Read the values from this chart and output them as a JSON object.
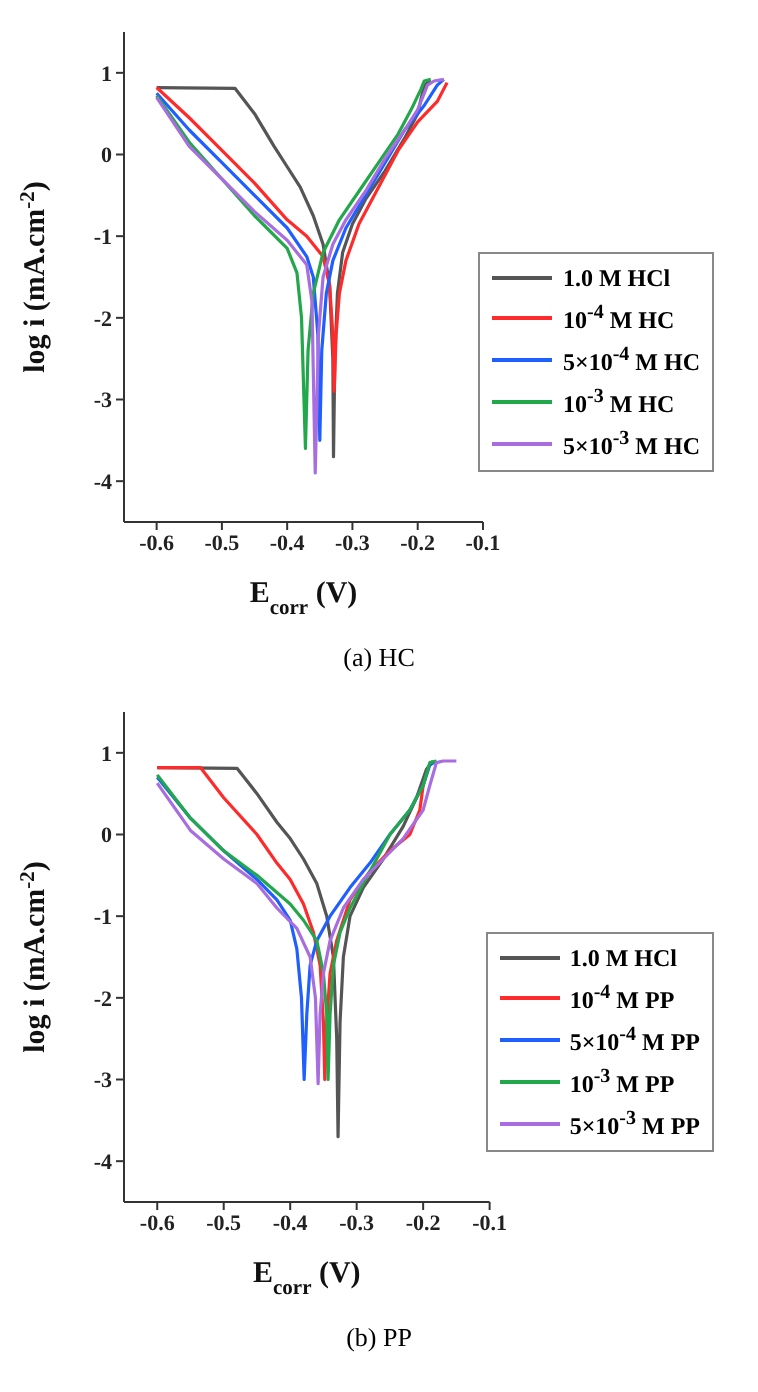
{
  "chart_data": [
    {
      "type": "line",
      "xlabel": "E$_{corr}$ (V)",
      "ylabel": "log i (mA.cm$^{-2}$)",
      "annotations": [
        "(a) HC"
      ],
      "xlim": [
        -0.65,
        -0.1
      ],
      "xticks": [
        -0.6,
        -0.5,
        -0.4,
        -0.3,
        -0.2,
        -0.1
      ],
      "ylim": [
        -4.5,
        1.5
      ],
      "yticks": [
        -4,
        -3,
        -2,
        -1,
        0,
        1
      ],
      "grid": false,
      "legend": "right",
      "line_style": "solid",
      "series": [
        {
          "name": "1.0 M HCl",
          "color": "#555555",
          "x": [
            -0.6,
            -0.48,
            -0.45,
            -0.42,
            -0.4,
            -0.38,
            -0.36,
            -0.345,
            -0.335,
            -0.33,
            -0.329,
            -0.327,
            -0.323,
            -0.315,
            -0.3,
            -0.28,
            -0.25,
            -0.22,
            -0.2,
            -0.19,
            -0.18
          ],
          "values": [
            0.82,
            0.81,
            0.5,
            0.1,
            -0.15,
            -0.4,
            -0.75,
            -1.1,
            -1.6,
            -2.5,
            -3.7,
            -2.5,
            -1.7,
            -1.2,
            -0.85,
            -0.55,
            -0.2,
            0.2,
            0.5,
            0.85,
            0.9
          ]
        },
        {
          "name": "10$^{-4}$ M HC",
          "color": "#ff2a2a",
          "x": [
            -0.6,
            -0.55,
            -0.5,
            -0.45,
            -0.4,
            -0.37,
            -0.345,
            -0.335,
            -0.33,
            -0.328,
            -0.325,
            -0.32,
            -0.31,
            -0.29,
            -0.26,
            -0.23,
            -0.2,
            -0.17,
            -0.155
          ],
          "values": [
            0.82,
            0.45,
            0.05,
            -0.35,
            -0.8,
            -1.0,
            -1.25,
            -1.6,
            -2.2,
            -2.9,
            -2.2,
            -1.7,
            -1.3,
            -0.85,
            -0.4,
            0.05,
            0.4,
            0.65,
            0.88
          ]
        },
        {
          "name": "5×10$^{-4}$ M HC",
          "color": "#1f5fff",
          "x": [
            -0.6,
            -0.55,
            -0.5,
            -0.45,
            -0.4,
            -0.37,
            -0.36,
            -0.353,
            -0.35,
            -0.347,
            -0.34,
            -0.33,
            -0.31,
            -0.28,
            -0.25,
            -0.22,
            -0.19,
            -0.17,
            -0.16
          ],
          "values": [
            0.75,
            0.3,
            -0.1,
            -0.5,
            -0.9,
            -1.25,
            -1.5,
            -2.2,
            -3.5,
            -2.4,
            -1.7,
            -1.3,
            -0.9,
            -0.5,
            -0.1,
            0.3,
            0.6,
            0.85,
            0.92
          ]
        },
        {
          "name": "10$^{-3}$ M HC",
          "color": "#22a84a",
          "x": [
            -0.6,
            -0.55,
            -0.5,
            -0.45,
            -0.4,
            -0.385,
            -0.378,
            -0.372,
            -0.368,
            -0.36,
            -0.345,
            -0.32,
            -0.29,
            -0.26,
            -0.23,
            -0.21,
            -0.195,
            -0.19,
            -0.18
          ],
          "values": [
            0.72,
            0.15,
            -0.3,
            -0.75,
            -1.15,
            -1.45,
            -2.0,
            -3.6,
            -2.4,
            -1.7,
            -1.2,
            -0.8,
            -0.45,
            -0.1,
            0.25,
            0.55,
            0.8,
            0.9,
            0.92
          ]
        },
        {
          "name": "5×10$^{-3}$ M HC",
          "color": "#a86ee0",
          "x": [
            -0.6,
            -0.55,
            -0.5,
            -0.45,
            -0.4,
            -0.37,
            -0.362,
            -0.357,
            -0.352,
            -0.345,
            -0.33,
            -0.31,
            -0.28,
            -0.25,
            -0.22,
            -0.2,
            -0.185,
            -0.175,
            -0.16
          ],
          "values": [
            0.7,
            0.1,
            -0.3,
            -0.7,
            -1.05,
            -1.35,
            -1.8,
            -3.9,
            -2.2,
            -1.5,
            -1.1,
            -0.8,
            -0.45,
            -0.05,
            0.3,
            0.55,
            0.85,
            0.9,
            0.92
          ]
        }
      ]
    },
    {
      "type": "line",
      "xlabel": "E$_{corr}$ (V)",
      "ylabel": "log i (mA.cm$^{-2}$)",
      "annotations": [
        "(b) PP"
      ],
      "xlim": [
        -0.65,
        -0.1
      ],
      "xticks": [
        -0.6,
        -0.5,
        -0.4,
        -0.3,
        -0.2,
        -0.1
      ],
      "ylim": [
        -4.5,
        1.5
      ],
      "yticks": [
        -4,
        -3,
        -2,
        -1,
        0,
        1
      ],
      "grid": false,
      "legend": "right",
      "line_style": "solid",
      "series": [
        {
          "name": "1.0 M HCl",
          "color": "#555555",
          "x": [
            -0.6,
            -0.48,
            -0.45,
            -0.42,
            -0.4,
            -0.38,
            -0.36,
            -0.345,
            -0.335,
            -0.33,
            -0.328,
            -0.325,
            -0.32,
            -0.31,
            -0.29,
            -0.26,
            -0.23,
            -0.21,
            -0.195,
            -0.185
          ],
          "values": [
            0.82,
            0.81,
            0.5,
            0.15,
            -0.05,
            -0.3,
            -0.6,
            -1.0,
            -1.5,
            -2.5,
            -3.7,
            -2.3,
            -1.5,
            -1.0,
            -0.65,
            -0.3,
            0.1,
            0.45,
            0.8,
            0.9
          ]
        },
        {
          "name": "10$^{-4}$ M PP",
          "color": "#ff2a2a",
          "x": [
            -0.6,
            -0.535,
            -0.5,
            -0.45,
            -0.42,
            -0.4,
            -0.38,
            -0.365,
            -0.355,
            -0.35,
            -0.348,
            -0.345,
            -0.34,
            -0.33,
            -0.31,
            -0.28,
            -0.25,
            -0.22,
            -0.205,
            -0.2
          ],
          "values": [
            0.82,
            0.82,
            0.45,
            0.0,
            -0.35,
            -0.55,
            -0.85,
            -1.2,
            -1.6,
            -2.3,
            -3.0,
            -2.3,
            -1.7,
            -1.3,
            -0.8,
            -0.45,
            -0.2,
            0.0,
            0.3,
            0.6
          ]
        },
        {
          "name": "5×10$^{-4}$ M PP",
          "color": "#1f5fff",
          "x": [
            -0.6,
            -0.55,
            -0.5,
            -0.45,
            -0.42,
            -0.4,
            -0.39,
            -0.383,
            -0.379,
            -0.375,
            -0.37,
            -0.36,
            -0.34,
            -0.31,
            -0.28,
            -0.25,
            -0.22,
            -0.2,
            -0.19,
            -0.18
          ],
          "values": [
            0.7,
            0.2,
            -0.2,
            -0.55,
            -0.8,
            -1.05,
            -1.4,
            -2.0,
            -3.0,
            -2.2,
            -1.6,
            -1.3,
            -1.0,
            -0.65,
            -0.35,
            0.0,
            0.3,
            0.6,
            0.85,
            0.9
          ]
        },
        {
          "name": "10$^{-3}$ M PP",
          "color": "#22a84a",
          "x": [
            -0.6,
            -0.55,
            -0.5,
            -0.45,
            -0.4,
            -0.38,
            -0.36,
            -0.35,
            -0.345,
            -0.343,
            -0.34,
            -0.335,
            -0.325,
            -0.31,
            -0.28,
            -0.25,
            -0.22,
            -0.2,
            -0.19,
            -0.18
          ],
          "values": [
            0.73,
            0.2,
            -0.2,
            -0.5,
            -0.85,
            -1.05,
            -1.3,
            -1.7,
            -2.2,
            -3.0,
            -2.2,
            -1.6,
            -1.2,
            -0.9,
            -0.45,
            0.0,
            0.3,
            0.6,
            0.88,
            0.9
          ]
        },
        {
          "name": "5×10$^{-3}$ M PP",
          "color": "#a86ee0",
          "x": [
            -0.6,
            -0.55,
            -0.5,
            -0.45,
            -0.42,
            -0.39,
            -0.37,
            -0.362,
            -0.358,
            -0.355,
            -0.35,
            -0.34,
            -0.32,
            -0.29,
            -0.26,
            -0.23,
            -0.2,
            -0.19,
            -0.18,
            -0.17,
            -0.15
          ],
          "values": [
            0.63,
            0.05,
            -0.3,
            -0.6,
            -0.9,
            -1.15,
            -1.5,
            -2.0,
            -3.05,
            -2.2,
            -1.7,
            -1.3,
            -0.9,
            -0.55,
            -0.3,
            -0.05,
            0.3,
            0.6,
            0.88,
            0.9,
            0.9
          ]
        }
      ]
    }
  ]
}
